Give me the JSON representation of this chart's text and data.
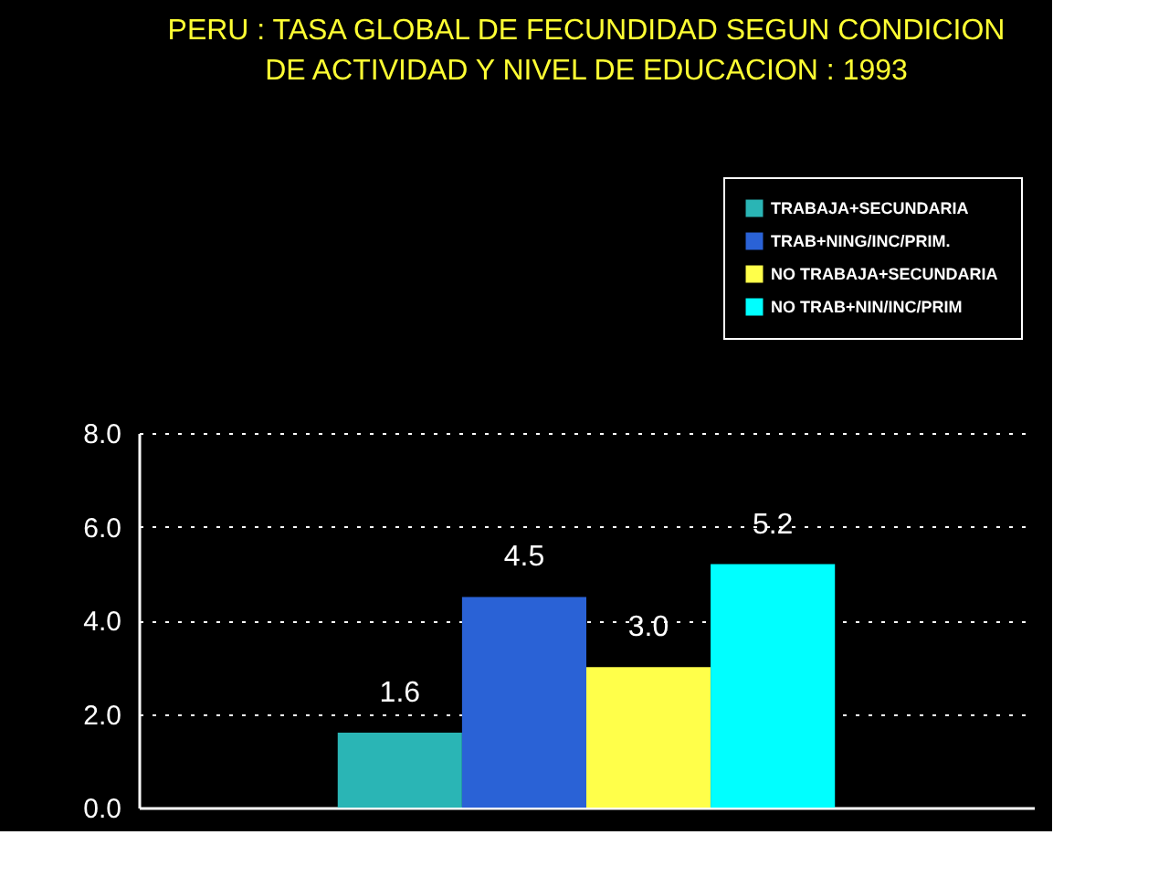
{
  "chart_data": {
    "type": "bar",
    "title": "PERU :  TASA GLOBAL DE FECUNDIDAD SEGUN CONDICION\nDE ACTIVIDAD Y NIVEL DE EDUCACION  :  1993",
    "categories": [
      null
    ],
    "series": [
      {
        "name": "TRABAJA+SECUNDARIA",
        "color": "#2ab5b5",
        "values": [
          1.6
        ],
        "value_labels": [
          "1.6"
        ]
      },
      {
        "name": "TRAB+NING/INC/PRIM.",
        "color": "#2a62d6",
        "values": [
          4.5
        ],
        "value_labels": [
          "4.5"
        ]
      },
      {
        "name": "NO TRABAJA+SECUNDARIA",
        "color": "#ffff4a",
        "values": [
          3.0
        ],
        "value_labels": [
          "3.0"
        ]
      },
      {
        "name": "NO TRAB+NIN/INC/PRIM",
        "color": "#00ffff",
        "values": [
          5.2
        ],
        "value_labels": [
          "5.2"
        ]
      }
    ],
    "ylim": [
      0,
      8
    ],
    "yticks": [
      {
        "value": 0,
        "label": "0.0"
      },
      {
        "value": 2,
        "label": "2.0"
      },
      {
        "value": 4,
        "label": "4.0"
      },
      {
        "value": 6,
        "label": "6.0"
      },
      {
        "value": 8,
        "label": "8.0"
      }
    ],
    "grid": "y",
    "legend": "top right",
    "tick_labels": "y"
  }
}
